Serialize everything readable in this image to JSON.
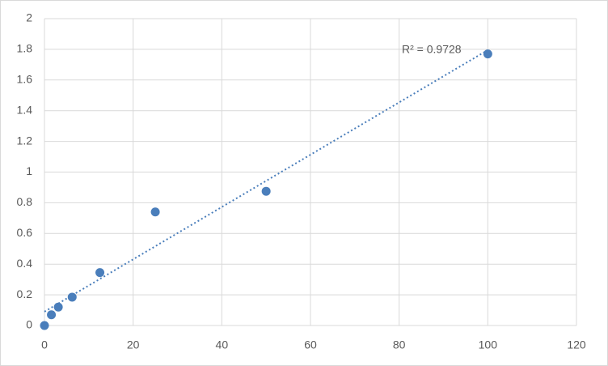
{
  "chart_data": {
    "type": "scatter",
    "annotation": "R² = 0.9728",
    "x": [
      0,
      1.5625,
      3.125,
      6.25,
      12.5,
      25,
      50,
      100
    ],
    "series": [
      {
        "color": "#4a7ebb",
        "values": [
          0,
          0.07,
          0.12,
          0.185,
          0.345,
          0.74,
          0.875,
          1.77
        ]
      }
    ],
    "trendline": "linear",
    "xlim": [
      0,
      120
    ],
    "xticks": [
      0,
      20,
      40,
      60,
      80,
      100,
      120
    ],
    "ylim": [
      0,
      2
    ],
    "yticks": [
      0,
      0.2,
      0.4,
      0.6,
      0.8,
      1,
      1.2,
      1.4,
      1.6,
      1.8,
      2
    ],
    "grid": true
  }
}
